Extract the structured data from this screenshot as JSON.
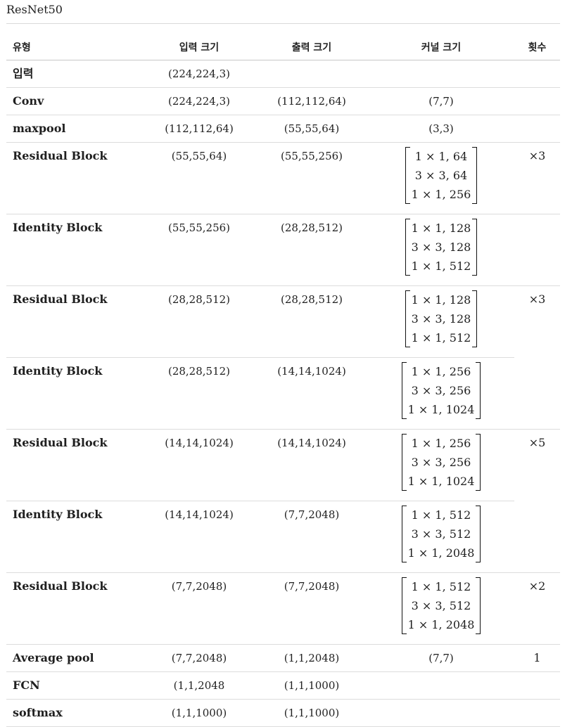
{
  "title": "ResNet50",
  "headers": {
    "type": "유형",
    "input": "입력 크기",
    "output": "출력 크기",
    "kernel": "커널 크기",
    "count": "횟수"
  },
  "rows": [
    {
      "type": "입력",
      "input": "(224,224,3)",
      "output": "",
      "kernel": "",
      "count": ""
    },
    {
      "type": "Conv",
      "input": "(224,224,3)",
      "output": "(112,112,64)",
      "kernel": "(7,7)",
      "count": ""
    },
    {
      "type": "maxpool",
      "input": "(112,112,64)",
      "output": "(55,55,64)",
      "kernel": "(3,3)",
      "count": ""
    },
    {
      "type": "Residual Block",
      "input": "(55,55,64)",
      "output": "(55,55,256)",
      "kernel_matrix": [
        "1 × 1, 64",
        "3 × 3, 64",
        "1 × 1, 256"
      ],
      "count": "×3"
    },
    {
      "type": "Identity Block",
      "input": "(55,55,256)",
      "output": "(28,28,512)",
      "kernel_matrix": [
        "1 × 1, 128",
        "3 × 3, 128",
        "1 × 1, 512"
      ],
      "count": ""
    },
    {
      "type": "Residual Block",
      "input": "(28,28,512)",
      "output": "(28,28,512)",
      "kernel_matrix": [
        "1 × 1, 128",
        "3 × 3, 128",
        "1 × 1, 512"
      ],
      "count": "×3"
    },
    {
      "type": "Identity Block",
      "input": "(28,28,512)",
      "output": "(14,14,1024)",
      "kernel_matrix": [
        "1 × 1, 256",
        "3 × 3, 256",
        "1 × 1, 1024"
      ],
      "count": ""
    },
    {
      "type": "Residual Block",
      "input": "(14,14,1024)",
      "output": "(14,14,1024)",
      "kernel_matrix": [
        "1 × 1, 256",
        "3 × 3, 256",
        "1 × 1, 1024"
      ],
      "count": "×5"
    },
    {
      "type": "Identity Block",
      "input": "(14,14,1024)",
      "output": "(7,7,2048)",
      "kernel_matrix": [
        "1 × 1, 512",
        "3 × 3, 512",
        "1 × 1, 2048"
      ],
      "count": ""
    },
    {
      "type": "Residual Block",
      "input": "(7,7,2048)",
      "output": "(7,7,2048)",
      "kernel_matrix": [
        "1 × 1, 512",
        "3 × 3, 512",
        "1 × 1, 2048"
      ],
      "count": "×2"
    },
    {
      "type": "Average pool",
      "input": "(7,7,2048)",
      "output": "(1,1,2048)",
      "kernel": "(7,7)",
      "count": "1"
    },
    {
      "type": "FCN",
      "input": "(1,1,2048",
      "output": "(1,1,1000)",
      "kernel": "",
      "count": ""
    },
    {
      "type": "softmax",
      "input": "(1,1,1000)",
      "output": "(1,1,1000)",
      "kernel": "",
      "count": ""
    }
  ]
}
